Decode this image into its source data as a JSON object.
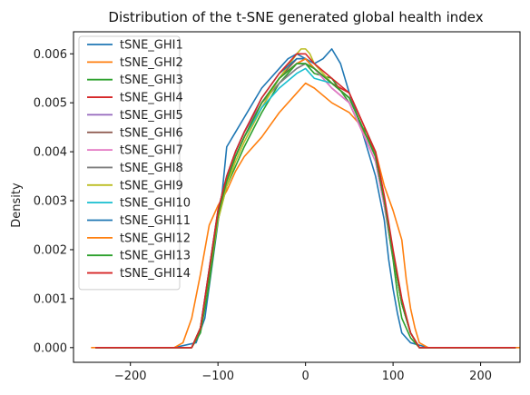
{
  "chart_data": {
    "type": "line",
    "title": "Distribution of the t-SNE generated global health index",
    "xlabel": "",
    "ylabel": "Density",
    "xlim": [
      -265,
      245
    ],
    "ylim": [
      -0.0003,
      0.00645
    ],
    "x_ticks": [
      -200,
      -100,
      0,
      100,
      200
    ],
    "x_tick_labels": [
      "−200",
      "−100",
      "0",
      "100",
      "200"
    ],
    "y_ticks": [
      0.0,
      0.001,
      0.002,
      0.003,
      0.004,
      0.005,
      0.006
    ],
    "y_tick_labels": [
      "0.000",
      "0.001",
      "0.002",
      "0.003",
      "0.004",
      "0.005",
      "0.006"
    ],
    "grid": false,
    "legend_position": "top-left",
    "series": [
      {
        "name": "tSNE_GHI1",
        "color": "#1f77b4",
        "x": [
          -240,
          -150,
          -125,
          -115,
          -105,
          -95,
          -90,
          -80,
          -70,
          -50,
          -30,
          -20,
          -10,
          0,
          10,
          20,
          30,
          40,
          50,
          60,
          70,
          80,
          90,
          95,
          100,
          105,
          110,
          120,
          140,
          240
        ],
        "y": [
          0,
          0,
          0.0001,
          0.0006,
          0.0019,
          0.0032,
          0.0041,
          0.0044,
          0.0047,
          0.0053,
          0.0057,
          0.0059,
          0.006,
          0.0059,
          0.0058,
          0.0059,
          0.0061,
          0.0058,
          0.0052,
          0.0047,
          0.0041,
          0.0035,
          0.0026,
          0.0018,
          0.0012,
          0.0007,
          0.0003,
          0.0001,
          0,
          0
        ]
      },
      {
        "name": "tSNE_GHI2",
        "color": "#ff7f0e",
        "x": [
          -245,
          -150,
          -140,
          -130,
          -120,
          -110,
          -100,
          -90,
          -80,
          -70,
          -50,
          -30,
          -10,
          0,
          10,
          30,
          50,
          60,
          70,
          80,
          90,
          100,
          110,
          115,
          120,
          125,
          130,
          140,
          150,
          245
        ],
        "y": [
          0,
          0,
          0.0001,
          0.0006,
          0.0015,
          0.0025,
          0.0029,
          0.0032,
          0.0036,
          0.0039,
          0.0043,
          0.0048,
          0.0052,
          0.0054,
          0.0053,
          0.005,
          0.0048,
          0.0046,
          0.0043,
          0.004,
          0.0033,
          0.0028,
          0.0022,
          0.0014,
          0.0008,
          0.0004,
          0.0001,
          0,
          0,
          0
        ]
      },
      {
        "name": "tSNE_GHI3",
        "color": "#2ca02c",
        "x": [
          -240,
          -150,
          -130,
          -120,
          -110,
          -100,
          -90,
          -80,
          -70,
          -50,
          -30,
          -10,
          0,
          10,
          30,
          50,
          60,
          70,
          80,
          90,
          100,
          105,
          110,
          120,
          130,
          240
        ],
        "y": [
          0,
          0,
          0,
          0.0003,
          0.0013,
          0.0026,
          0.0033,
          0.0037,
          0.0041,
          0.0048,
          0.0054,
          0.0058,
          0.0058,
          0.0056,
          0.0055,
          0.005,
          0.0046,
          0.0044,
          0.004,
          0.0029,
          0.0018,
          0.0011,
          0.0006,
          0.0002,
          0,
          0
        ]
      },
      {
        "name": "tSNE_GHI4",
        "color": "#d62728",
        "x": [
          -240,
          -150,
          -130,
          -120,
          -110,
          -100,
          -90,
          -80,
          -70,
          -50,
          -30,
          -10,
          0,
          10,
          30,
          50,
          60,
          70,
          80,
          90,
          100,
          110,
          120,
          130,
          240
        ],
        "y": [
          0,
          0,
          0,
          0.0004,
          0.0015,
          0.0027,
          0.0034,
          0.0039,
          0.0043,
          0.005,
          0.0055,
          0.0058,
          0.0059,
          0.0057,
          0.0054,
          0.0052,
          0.0048,
          0.0044,
          0.0039,
          0.003,
          0.0019,
          0.0009,
          0.0003,
          0,
          0
        ]
      },
      {
        "name": "tSNE_GHI5",
        "color": "#9467bd",
        "x": [
          -240,
          -150,
          -130,
          -120,
          -110,
          -100,
          -90,
          -80,
          -70,
          -50,
          -30,
          -10,
          0,
          10,
          30,
          50,
          60,
          70,
          80,
          90,
          100,
          110,
          120,
          130,
          240
        ],
        "y": [
          0,
          0,
          0,
          0.0004,
          0.0016,
          0.0028,
          0.0035,
          0.004,
          0.0044,
          0.005,
          0.0054,
          0.0057,
          0.0058,
          0.0057,
          0.0053,
          0.005,
          0.0046,
          0.0042,
          0.0038,
          0.0029,
          0.0019,
          0.0009,
          0.0003,
          0,
          0
        ]
      },
      {
        "name": "tSNE_GHI6",
        "color": "#8c564b",
        "x": [
          -240,
          -150,
          -130,
          -120,
          -110,
          -100,
          -90,
          -80,
          -70,
          -50,
          -30,
          -10,
          0,
          10,
          30,
          50,
          60,
          70,
          80,
          90,
          100,
          110,
          120,
          130,
          240
        ],
        "y": [
          0,
          0,
          0,
          0.0004,
          0.0015,
          0.0027,
          0.0034,
          0.0039,
          0.0043,
          0.005,
          0.0055,
          0.0059,
          0.0059,
          0.0057,
          0.0054,
          0.0051,
          0.0047,
          0.0043,
          0.0039,
          0.003,
          0.0019,
          0.0009,
          0.0003,
          0,
          0
        ]
      },
      {
        "name": "tSNE_GHI7",
        "color": "#e377c2",
        "x": [
          -240,
          -150,
          -130,
          -120,
          -110,
          -100,
          -90,
          -80,
          -70,
          -50,
          -30,
          -10,
          0,
          10,
          30,
          50,
          60,
          70,
          80,
          90,
          100,
          110,
          120,
          130,
          240
        ],
        "y": [
          0,
          0,
          0,
          0.0004,
          0.0015,
          0.0027,
          0.0034,
          0.0039,
          0.0043,
          0.005,
          0.0055,
          0.0058,
          0.0059,
          0.0057,
          0.0053,
          0.005,
          0.0046,
          0.0042,
          0.0038,
          0.0029,
          0.0019,
          0.0009,
          0.0003,
          0,
          0
        ]
      },
      {
        "name": "tSNE_GHI8",
        "color": "#7f7f7f",
        "x": [
          -240,
          -150,
          -130,
          -120,
          -110,
          -100,
          -90,
          -80,
          -70,
          -50,
          -30,
          -10,
          0,
          10,
          30,
          50,
          60,
          70,
          80,
          90,
          100,
          110,
          120,
          130,
          240
        ],
        "y": [
          0,
          0,
          0,
          0.0004,
          0.0015,
          0.0027,
          0.0034,
          0.0039,
          0.0043,
          0.005,
          0.0054,
          0.0057,
          0.0058,
          0.0057,
          0.0054,
          0.0051,
          0.0047,
          0.0043,
          0.0039,
          0.003,
          0.0019,
          0.0009,
          0.0003,
          0,
          0
        ]
      },
      {
        "name": "tSNE_GHI9",
        "color": "#bcbd22",
        "x": [
          -240,
          -150,
          -130,
          -120,
          -110,
          -100,
          -90,
          -80,
          -70,
          -50,
          -30,
          -10,
          -5,
          0,
          5,
          10,
          30,
          50,
          60,
          70,
          80,
          90,
          100,
          110,
          120,
          130,
          240
        ],
        "y": [
          0,
          0,
          0,
          0.0004,
          0.0015,
          0.0026,
          0.0033,
          0.0038,
          0.0042,
          0.0049,
          0.0055,
          0.006,
          0.0061,
          0.0061,
          0.006,
          0.0058,
          0.0054,
          0.0051,
          0.0047,
          0.0043,
          0.0039,
          0.003,
          0.0019,
          0.0009,
          0.0003,
          0,
          0
        ]
      },
      {
        "name": "tSNE_GHI10",
        "color": "#17becf",
        "x": [
          -240,
          -150,
          -130,
          -120,
          -110,
          -100,
          -90,
          -80,
          -70,
          -50,
          -30,
          -10,
          0,
          10,
          30,
          50,
          60,
          70,
          80,
          90,
          100,
          110,
          120,
          130,
          240
        ],
        "y": [
          0,
          0,
          0,
          0.0004,
          0.0015,
          0.0027,
          0.0034,
          0.0039,
          0.0043,
          0.0049,
          0.0053,
          0.0056,
          0.0057,
          0.0055,
          0.0054,
          0.0051,
          0.0047,
          0.0043,
          0.0039,
          0.003,
          0.0019,
          0.0009,
          0.0003,
          0,
          0
        ]
      },
      {
        "name": "tSNE_GHI11",
        "color": "#1f77b4",
        "x": [
          -240,
          -150,
          -130,
          -120,
          -110,
          -100,
          -90,
          -80,
          -70,
          -50,
          -30,
          -10,
          0,
          10,
          30,
          50,
          60,
          70,
          80,
          90,
          100,
          110,
          120,
          130,
          240
        ],
        "y": [
          0,
          0,
          0,
          0.0004,
          0.0016,
          0.0028,
          0.0035,
          0.004,
          0.0044,
          0.0051,
          0.0056,
          0.0059,
          0.0059,
          0.0057,
          0.0054,
          0.0051,
          0.0047,
          0.0043,
          0.0039,
          0.003,
          0.0019,
          0.0009,
          0.0003,
          0,
          0
        ]
      },
      {
        "name": "tSNE_GHI12",
        "color": "#ff7f0e",
        "x": [
          -240,
          -150,
          -130,
          -120,
          -110,
          -100,
          -90,
          -80,
          -70,
          -50,
          -30,
          -10,
          0,
          10,
          30,
          50,
          60,
          70,
          80,
          90,
          100,
          110,
          120,
          130,
          240
        ],
        "y": [
          0,
          0,
          0,
          0.0004,
          0.0015,
          0.0027,
          0.0034,
          0.0039,
          0.0043,
          0.005,
          0.0055,
          0.0058,
          0.0059,
          0.0057,
          0.0054,
          0.0051,
          0.0047,
          0.0043,
          0.0039,
          0.003,
          0.0019,
          0.0009,
          0.0003,
          0,
          0
        ]
      },
      {
        "name": "tSNE_GHI13",
        "color": "#2ca02c",
        "x": [
          -240,
          -150,
          -130,
          -120,
          -110,
          -100,
          -90,
          -80,
          -70,
          -50,
          -30,
          -10,
          0,
          10,
          30,
          50,
          60,
          70,
          80,
          90,
          100,
          110,
          120,
          130,
          240
        ],
        "y": [
          0,
          0,
          0,
          0.0004,
          0.0015,
          0.0027,
          0.0034,
          0.0039,
          0.0043,
          0.005,
          0.0055,
          0.0058,
          0.0058,
          0.0057,
          0.0054,
          0.0051,
          0.0047,
          0.0043,
          0.0039,
          0.003,
          0.0019,
          0.0009,
          0.0003,
          0,
          0
        ]
      },
      {
        "name": "tSNE_GHI14",
        "color": "#d62728",
        "x": [
          -240,
          -150,
          -130,
          -120,
          -110,
          -100,
          -90,
          -80,
          -70,
          -50,
          -30,
          -10,
          0,
          10,
          30,
          50,
          60,
          70,
          80,
          90,
          100,
          110,
          120,
          130,
          240
        ],
        "y": [
          0,
          0,
          0,
          0.0004,
          0.0016,
          0.0028,
          0.0035,
          0.004,
          0.0044,
          0.0051,
          0.0056,
          0.006,
          0.006,
          0.0058,
          0.0055,
          0.0052,
          0.0048,
          0.0044,
          0.004,
          0.0031,
          0.002,
          0.001,
          0.0003,
          0,
          0
        ]
      }
    ]
  }
}
